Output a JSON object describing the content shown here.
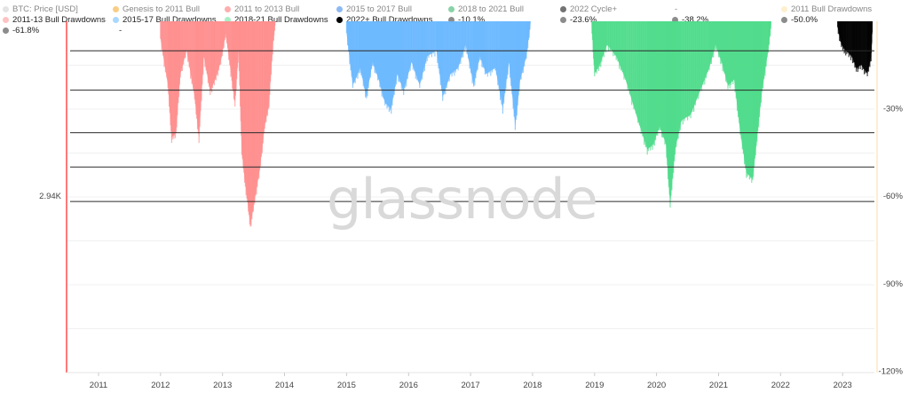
{
  "legend": [
    {
      "label": "BTC: Price [USD]",
      "color": "#cfcfcf",
      "dim": true
    },
    {
      "label": "Genesis to 2011 Bull",
      "color": "#f5a623",
      "dim": true
    },
    {
      "label": "2011 to 2013 Bull",
      "color": "#ff6b6b",
      "dim": true
    },
    {
      "label": "2015 to 2017 Bull",
      "color": "#2f80ed",
      "dim": true
    },
    {
      "label": "2018 to 2021 Bull",
      "color": "#27ae60",
      "dim": true
    },
    {
      "label": "2022 Cycle+",
      "color": "#000000",
      "dim": true
    },
    {
      "label": "-",
      "color": "",
      "dim": true
    },
    {
      "label": "2011 Bull Drawdowns",
      "color": "#ffe2a8",
      "dim": true
    },
    {
      "label": "2011-13 Bull Drawdowns",
      "color": "#ffc2c2",
      "dim": false
    },
    {
      "label": "2015-17 Bull Drawdowns",
      "color": "#a9d7ff",
      "dim": false
    },
    {
      "label": "2018-21 Bull Drawdowns",
      "color": "#a8efc4",
      "dim": false
    },
    {
      "label": "2022+ Bull Drawdowns",
      "color": "#000000",
      "dim": false
    },
    {
      "label": "-10.1%",
      "color": "#8c8c8c",
      "dim": false
    },
    {
      "label": "-23.6%",
      "color": "#8c8c8c",
      "dim": false
    },
    {
      "label": "-38.2%",
      "color": "#8c8c8c",
      "dim": false
    },
    {
      "label": "-50.0%",
      "color": "#8c8c8c",
      "dim": false
    },
    {
      "label": "-61.8%",
      "color": "#8c8c8c",
      "dim": false
    },
    {
      "label": "-",
      "color": "",
      "dim": false
    }
  ],
  "watermark": "glassnode",
  "chart_data": {
    "type": "area",
    "x_ticks": [
      "2011",
      "2012",
      "2013",
      "2014",
      "2015",
      "2016",
      "2017",
      "2018",
      "2019",
      "2020",
      "2021",
      "2022",
      "2023"
    ],
    "left_axis": {
      "tick_labels": [
        "2.94K"
      ]
    },
    "right_axis": {
      "tick_labels": [
        "-30%",
        "-60%",
        "-90%",
        "-120%"
      ],
      "ticks": [
        -30,
        -60,
        -90,
        -120
      ],
      "ylim": [
        0,
        -120
      ]
    },
    "fib_levels": [
      -10.1,
      -23.6,
      -38.2,
      -50.0,
      -61.8
    ],
    "series": [
      {
        "name": "2011-13 Bull Drawdowns",
        "color": "#ff8f8f",
        "points": [
          [
            2012.0,
            -6
          ],
          [
            2012.12,
            -22
          ],
          [
            2012.18,
            -40
          ],
          [
            2012.25,
            -38
          ],
          [
            2012.32,
            -18
          ],
          [
            2012.42,
            -10
          ],
          [
            2012.55,
            -26
          ],
          [
            2012.62,
            -40
          ],
          [
            2012.7,
            -12
          ],
          [
            2012.8,
            -24
          ],
          [
            2012.88,
            -20
          ],
          [
            2012.97,
            -14
          ],
          [
            2013.05,
            -4
          ],
          [
            2013.15,
            -20
          ],
          [
            2013.2,
            -28
          ],
          [
            2013.26,
            -10
          ],
          [
            2013.31,
            -45
          ],
          [
            2013.38,
            -58
          ],
          [
            2013.45,
            -70
          ],
          [
            2013.52,
            -61
          ],
          [
            2013.6,
            -51
          ],
          [
            2013.68,
            -36
          ],
          [
            2013.75,
            -28
          ],
          [
            2013.82,
            -6
          ],
          [
            2013.85,
            0
          ]
        ]
      },
      {
        "name": "2015-17 Bull Drawdowns",
        "color": "#6ab8ff",
        "points": [
          [
            2015.0,
            -4
          ],
          [
            2015.1,
            -22
          ],
          [
            2015.22,
            -16
          ],
          [
            2015.32,
            -26
          ],
          [
            2015.42,
            -14
          ],
          [
            2015.52,
            -20
          ],
          [
            2015.62,
            -28
          ],
          [
            2015.72,
            -30
          ],
          [
            2015.82,
            -18
          ],
          [
            2015.92,
            -24
          ],
          [
            2016.05,
            -14
          ],
          [
            2016.18,
            -22
          ],
          [
            2016.3,
            -12
          ],
          [
            2016.45,
            -10
          ],
          [
            2016.55,
            -26
          ],
          [
            2016.68,
            -18
          ],
          [
            2016.8,
            -16
          ],
          [
            2016.92,
            -8
          ],
          [
            2017.05,
            -22
          ],
          [
            2017.15,
            -12
          ],
          [
            2017.25,
            -18
          ],
          [
            2017.4,
            -16
          ],
          [
            2017.52,
            -30
          ],
          [
            2017.62,
            -14
          ],
          [
            2017.72,
            -36
          ],
          [
            2017.8,
            -20
          ],
          [
            2017.9,
            -12
          ],
          [
            2017.97,
            0
          ]
        ]
      },
      {
        "name": "2018-21 Bull Drawdowns",
        "color": "#4ddc8a",
        "points": [
          [
            2018.95,
            0
          ],
          [
            2019.0,
            -18
          ],
          [
            2019.1,
            -14
          ],
          [
            2019.2,
            -8
          ],
          [
            2019.35,
            -12
          ],
          [
            2019.5,
            -20
          ],
          [
            2019.7,
            -34
          ],
          [
            2019.85,
            -44
          ],
          [
            2019.95,
            -42
          ],
          [
            2020.05,
            -36
          ],
          [
            2020.15,
            -42
          ],
          [
            2020.22,
            -63
          ],
          [
            2020.3,
            -44
          ],
          [
            2020.4,
            -34
          ],
          [
            2020.55,
            -32
          ],
          [
            2020.7,
            -24
          ],
          [
            2020.85,
            -16
          ],
          [
            2020.95,
            -8
          ],
          [
            2021.05,
            -14
          ],
          [
            2021.15,
            -22
          ],
          [
            2021.25,
            -20
          ],
          [
            2021.35,
            -38
          ],
          [
            2021.45,
            -52
          ],
          [
            2021.55,
            -54
          ],
          [
            2021.62,
            -40
          ],
          [
            2021.7,
            -24
          ],
          [
            2021.8,
            -10
          ],
          [
            2021.85,
            0
          ]
        ]
      },
      {
        "name": "2022+ Bull Drawdowns",
        "color": "#000000",
        "points": [
          [
            2022.92,
            -2
          ],
          [
            2022.98,
            -8
          ],
          [
            2023.05,
            -10
          ],
          [
            2023.15,
            -12
          ],
          [
            2023.22,
            -16
          ],
          [
            2023.3,
            -15
          ],
          [
            2023.4,
            -18
          ],
          [
            2023.46,
            -12
          ],
          [
            2023.48,
            0
          ]
        ]
      }
    ]
  }
}
